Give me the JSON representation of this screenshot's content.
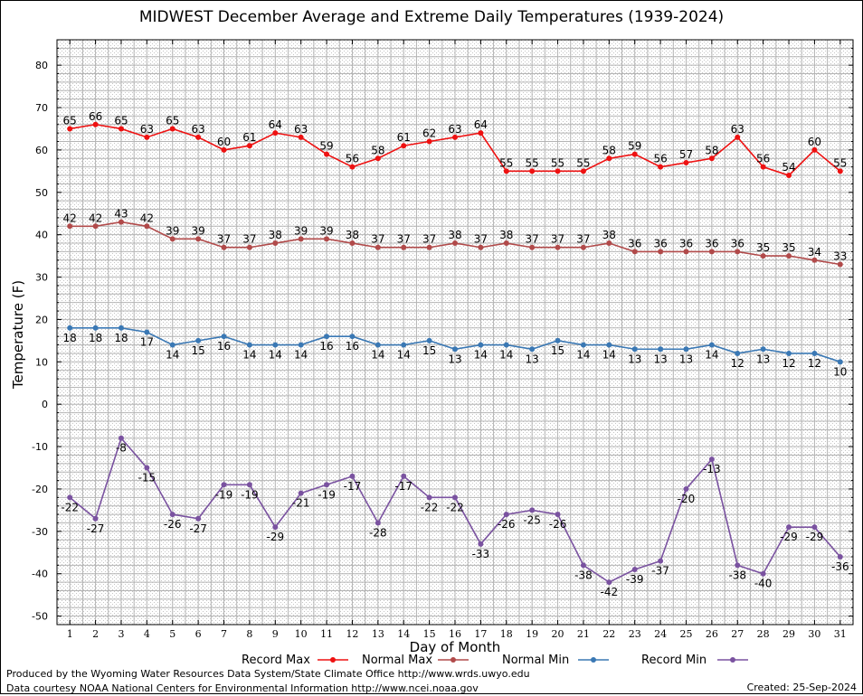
{
  "chart_data": {
    "type": "line",
    "title": "MIDWEST December Average and Extreme Daily Temperatures (1939-2024)",
    "xlabel": "Day of Month",
    "ylabel": "Temperature (F)",
    "ylim": [
      -52,
      86
    ],
    "yticks": [
      -50,
      -40,
      -30,
      -20,
      -10,
      0,
      10,
      20,
      30,
      40,
      50,
      60,
      70,
      80
    ],
    "x": [
      1,
      2,
      3,
      4,
      5,
      6,
      7,
      8,
      9,
      10,
      11,
      12,
      13,
      14,
      15,
      16,
      17,
      18,
      19,
      20,
      21,
      22,
      23,
      24,
      25,
      26,
      27,
      28,
      29,
      30,
      31
    ],
    "grid": true,
    "legend_position": "bottom",
    "series": [
      {
        "name": "Record Max",
        "color": "#ee1111",
        "label_pos": "above",
        "values": [
          65,
          66,
          65,
          63,
          65,
          63,
          60,
          61,
          64,
          63,
          59,
          56,
          58,
          61,
          62,
          63,
          64,
          55,
          55,
          55,
          55,
          58,
          59,
          56,
          57,
          58,
          63,
          56,
          54,
          60,
          55
        ]
      },
      {
        "name": "Normal Max",
        "color": "#b14a4a",
        "label_pos": "above",
        "values": [
          42,
          42,
          43,
          42,
          39,
          39,
          37,
          37,
          38,
          39,
          39,
          38,
          37,
          37,
          37,
          38,
          37,
          38,
          37,
          37,
          37,
          38,
          36,
          36,
          36,
          36,
          36,
          35,
          35,
          34,
          33
        ]
      },
      {
        "name": "Normal Min",
        "color": "#3a78b4",
        "label_pos": "below",
        "values": [
          18,
          18,
          18,
          17,
          14,
          15,
          16,
          14,
          14,
          14,
          16,
          16,
          14,
          14,
          15,
          13,
          14,
          14,
          13,
          15,
          14,
          14,
          13,
          13,
          13,
          14,
          12,
          13,
          12,
          12,
          10
        ]
      },
      {
        "name": "Record Min",
        "color": "#7a52a0",
        "label_pos": "below",
        "values": [
          -22,
          -27,
          -8,
          -15,
          -26,
          -27,
          -19,
          -19,
          -29,
          -21,
          -19,
          -17,
          -28,
          -17,
          -22,
          -22,
          -33,
          -26,
          -25,
          -26,
          -38,
          -42,
          -39,
          -37,
          -20,
          -13,
          -38,
          -40,
          -29,
          -29,
          -36
        ]
      }
    ]
  },
  "footer": {
    "produced_by": "Produced by the Wyoming Water Resources Data System/State Climate Office http://www.wrds.uwyo.edu",
    "courtesy": "Data courtesy NOAA National Centers for Environmental Information http://www.ncei.noaa.gov",
    "created": "Created:  25-Sep-2024"
  }
}
